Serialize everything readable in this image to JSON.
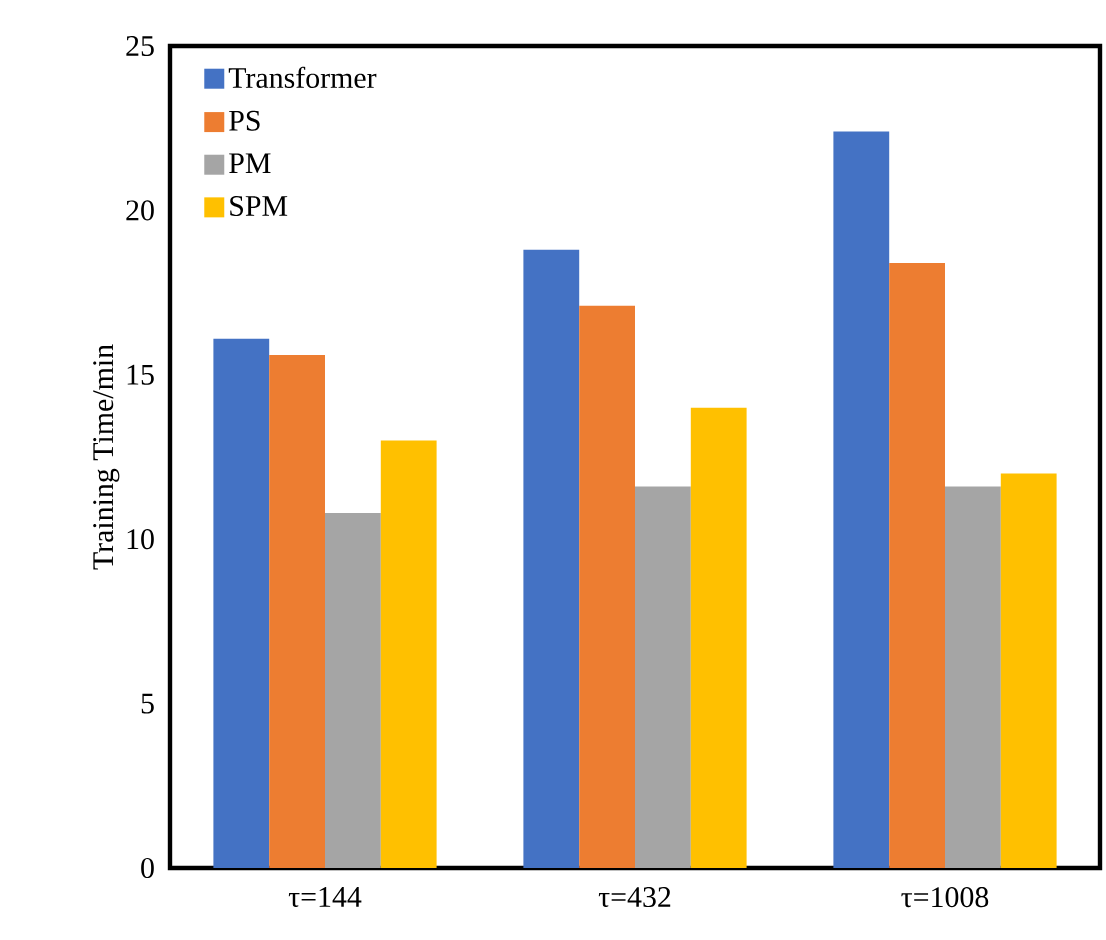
{
  "chart_data": {
    "type": "bar",
    "ylabel": "Training Time/min",
    "categories": [
      "τ=144",
      "τ=432",
      "τ=1008"
    ],
    "series": [
      {
        "name": "Transformer",
        "color": "#4472c4",
        "values": [
          16.1,
          18.8,
          22.4
        ]
      },
      {
        "name": "PS",
        "color": "#ed7d31",
        "values": [
          15.6,
          17.1,
          18.4
        ]
      },
      {
        "name": "PM",
        "color": "#a5a5a5",
        "values": [
          10.8,
          11.6,
          11.6
        ]
      },
      {
        "name": "SPM",
        "color": "#ffc000",
        "values": [
          13.0,
          14.0,
          12.0
        ]
      }
    ],
    "ylim": [
      0,
      25
    ],
    "yticks": [
      0,
      5,
      10,
      15,
      20,
      25
    ],
    "legend": "top left",
    "grid": false
  }
}
